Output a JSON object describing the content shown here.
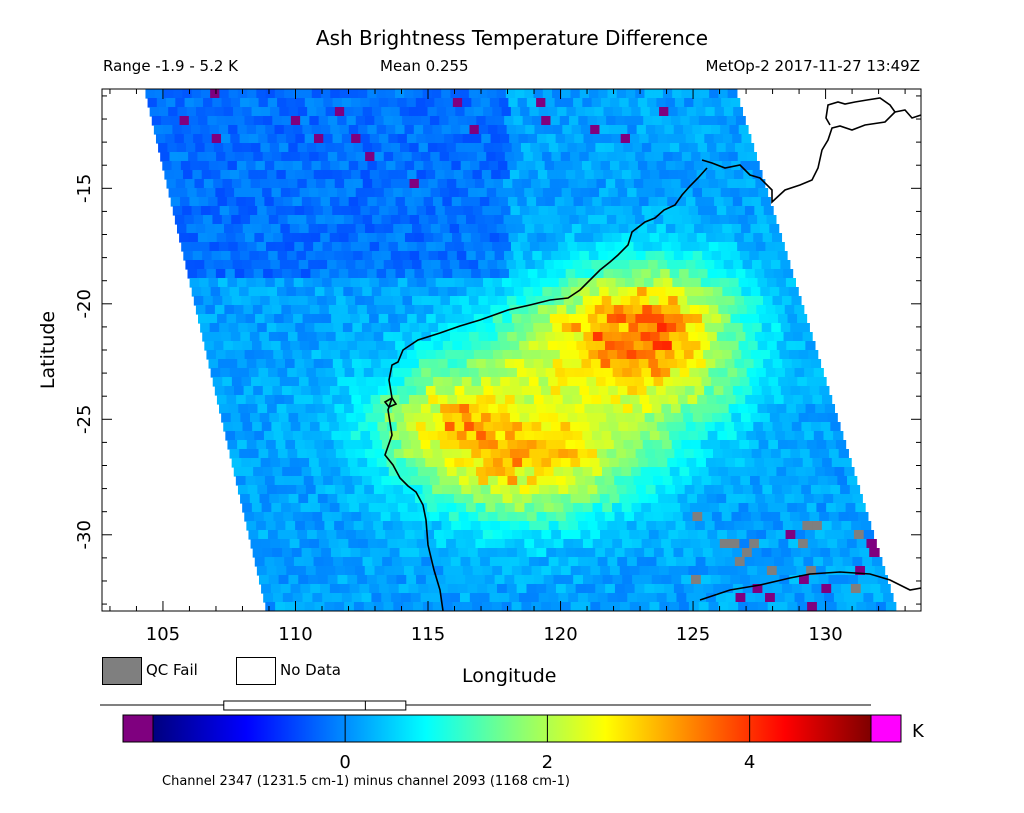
{
  "header": {
    "title": "Ash Brightness Temperature Difference",
    "range": "Range -1.9 - 5.2 K",
    "mean": "Mean 0.255",
    "satellite": "MetOp-2 2017-11-27 13:49Z"
  },
  "legend": {
    "qc_fail": "QC Fail",
    "no_data": "No Data",
    "qc_color": "#7f7f7f",
    "nodata_color": "#ffffff"
  },
  "chart_data": {
    "type": "heatmap",
    "title": "Ash Brightness Temperature Difference",
    "xlabel": "Longitude",
    "ylabel": "Latitude",
    "xlim": [
      102.7,
      133.6
    ],
    "ylim": [
      -33.3,
      -10.7
    ],
    "x_ticks": [
      105,
      110,
      115,
      120,
      125,
      130
    ],
    "y_ticks": [
      -15,
      -20,
      -25,
      -30
    ],
    "x_tick_labels": [
      "105",
      "110",
      "115",
      "120",
      "125",
      "130"
    ],
    "y_tick_labels": [
      "-15",
      "-20",
      "-25",
      "-30"
    ],
    "colorbar": {
      "min": -1.9,
      "max": 5.2,
      "ticks": [
        0,
        2,
        4
      ],
      "tick_labels": [
        "0",
        "2",
        "4"
      ],
      "unit": "K",
      "box_stats": {
        "min": -1.9,
        "q1": -1.2,
        "median": 0.2,
        "q3": 0.6,
        "max": 5.2
      },
      "under_color": "#7f007f",
      "over_color": "#ff00ff"
    },
    "range": [
      -1.9,
      5.2
    ],
    "mean": 0.255,
    "swath_lon_top": [
      104.3,
      126.6
    ],
    "swath_lon_bottom": [
      108.9,
      132.7
    ],
    "warm_regions": [
      {
        "lon": 116.0,
        "lat": -25.0,
        "value": 2.3
      },
      {
        "lon": 123.5,
        "lat": -20.5,
        "value": 2.6
      },
      {
        "lon": 120.0,
        "lat": -22.0,
        "value": 1.6
      },
      {
        "lon": 118.0,
        "lat": -27.5,
        "value": 1.5
      },
      {
        "lon": 121.0,
        "lat": -26.5,
        "value": 1.4
      },
      {
        "lon": 124.0,
        "lat": -23.5,
        "value": 1.5
      }
    ],
    "footnote": "Channel 2347 (1231.5 cm-1) minus channel 2093 (1168 cm-1)"
  }
}
